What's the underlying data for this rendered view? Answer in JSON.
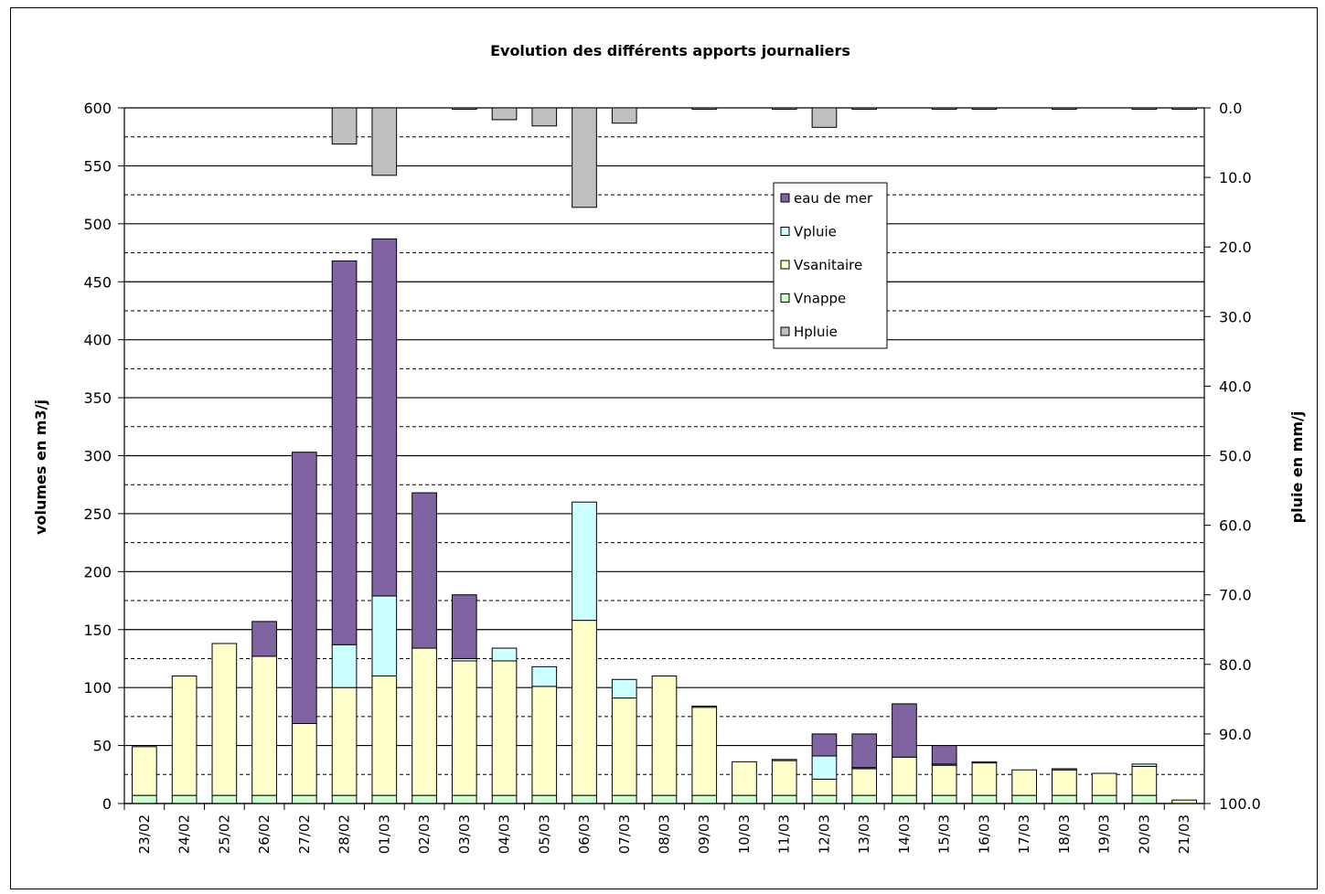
{
  "chart_data": {
    "type": "bar",
    "title": "Evolution des différents apports journaliers",
    "ylabel": "volumes en m3/j",
    "y2label": "pluie en mm/j",
    "ylim": [
      0,
      600
    ],
    "y2lim": [
      0,
      100
    ],
    "y2_inverted": true,
    "yticks": [
      "0",
      "50",
      "100",
      "150",
      "200",
      "250",
      "300",
      "350",
      "400",
      "450",
      "500",
      "550",
      "600"
    ],
    "y2ticks": [
      "0.0",
      "10.0",
      "20.0",
      "30.0",
      "40.0",
      "50.0",
      "60.0",
      "70.0",
      "80.0",
      "90.0",
      "100.0"
    ],
    "grid": true,
    "legend_position": "upper-center-right",
    "categories": [
      "23/02",
      "24/02",
      "25/02",
      "26/02",
      "27/02",
      "28/02",
      "01/03",
      "02/03",
      "03/03",
      "04/03",
      "05/03",
      "06/03",
      "07/03",
      "08/03",
      "09/03",
      "10/03",
      "11/03",
      "12/03",
      "13/03",
      "14/03",
      "15/03",
      "16/03",
      "17/03",
      "18/03",
      "19/03",
      "20/03",
      "21/03"
    ],
    "stacked_series": [
      {
        "name": "Vnappe",
        "color": "#ccffcc",
        "values": [
          7,
          7,
          7,
          7,
          7,
          7,
          7,
          7,
          7,
          7,
          7,
          7,
          7,
          7,
          7,
          7,
          7,
          7,
          7,
          7,
          7,
          7,
          7,
          7,
          7,
          7,
          0
        ]
      },
      {
        "name": "Vsanitaire",
        "color": "#ffffcc",
        "values": [
          42,
          103,
          131,
          120,
          62,
          93,
          103,
          127,
          116,
          116,
          94,
          151,
          84,
          103,
          76,
          29,
          30,
          14,
          23,
          33,
          26,
          28,
          22,
          22,
          19,
          25,
          3
        ]
      },
      {
        "name": "Vpluie",
        "color": "#ccffff",
        "values": [
          0,
          0,
          0,
          0,
          0,
          37,
          69,
          0,
          2,
          11,
          17,
          102,
          16,
          0,
          1,
          0,
          1,
          20,
          1,
          0,
          1,
          1,
          0,
          1,
          0,
          2,
          0
        ]
      },
      {
        "name": "eau de mer",
        "color": "#8064a2",
        "values": [
          0,
          0,
          0,
          30,
          234,
          331,
          308,
          134,
          55,
          0,
          0,
          0,
          0,
          0,
          0,
          0,
          0,
          19,
          29,
          46,
          16,
          0,
          0,
          0,
          0,
          0,
          0
        ]
      }
    ],
    "series_hpluie": {
      "name": "Hpluie",
      "color": "#c0c0c0",
      "axis": "secondary",
      "values": [
        0,
        0,
        0,
        0,
        0,
        5.2,
        9.7,
        0,
        0.2,
        1.7,
        2.6,
        14.3,
        2.2,
        0,
        0.2,
        0,
        0.2,
        2.8,
        0.2,
        0,
        0.2,
        0.2,
        0,
        0.2,
        0,
        0.2,
        0.2
      ]
    },
    "legend": [
      {
        "name": "eau de mer",
        "color": "#8064a2"
      },
      {
        "name": "Vpluie",
        "color": "#ccffff"
      },
      {
        "name": "Vsanitaire",
        "color": "#ffffcc"
      },
      {
        "name": "Vnappe",
        "color": "#ccffcc"
      },
      {
        "name": "Hpluie",
        "color": "#c0c0c0"
      }
    ]
  }
}
